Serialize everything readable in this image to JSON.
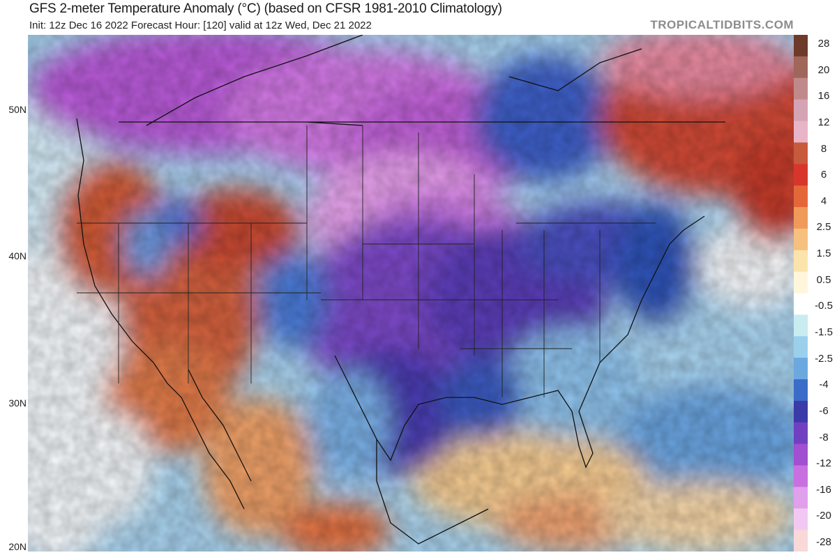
{
  "header": {
    "title": "GFS 2-meter Temperature Anomaly (°C) (based on CFSR 1981-2010 Climatology)",
    "subtitle": "Init: 12z Dec 16 2022   Forecast Hour: [120]   valid at 12z Wed, Dec 21 2022",
    "watermark": "TROPICALTIDBITS.COM"
  },
  "map": {
    "latitude_labels": [
      "50N",
      "40N",
      "30N",
      "20N"
    ]
  },
  "legend": {
    "labels": [
      "28",
      "20",
      "16",
      "12",
      "8",
      "6",
      "4",
      "2.5",
      "1.5",
      "0.5",
      "-0.5",
      "-1.5",
      "-2.5",
      "-4",
      "-6",
      "-8",
      "-12",
      "-16",
      "-20",
      "-28"
    ],
    "colors": [
      "#6e3b2a",
      "#a0665a",
      "#c08a8a",
      "#d4a4b4",
      "#e8b4c8",
      "#c85a3c",
      "#d8362c",
      "#e4673a",
      "#f09a5a",
      "#f6c07e",
      "#fbe4ac",
      "#fff6dc",
      "#ffffff",
      "#c8ecf0",
      "#9ad0ec",
      "#6ca8e0",
      "#3a6cc8",
      "#3a3aa8",
      "#7040c0",
      "#a050d0",
      "#c870e0",
      "#e0a0ec",
      "#f2c8f2",
      "#f8d8d8"
    ]
  }
}
